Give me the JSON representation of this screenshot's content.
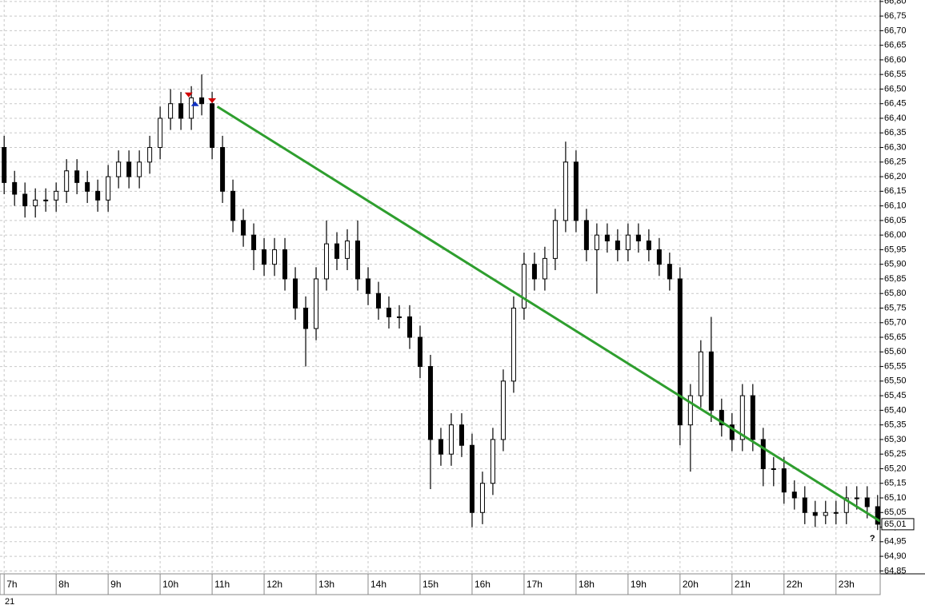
{
  "chart_data": {
    "type": "candlestick",
    "x": [
      7,
      7.2,
      7.4,
      7.6,
      7.8,
      8,
      8.2,
      8.4,
      8.6,
      8.8,
      9,
      9.2,
      9.4,
      9.6,
      9.8,
      10,
      10.2,
      10.4,
      10.6,
      10.8,
      11,
      11.2,
      11.4,
      11.6,
      11.8,
      12,
      12.2,
      12.4,
      12.6,
      12.8,
      13,
      13.2,
      13.4,
      13.6,
      13.8,
      14,
      14.2,
      14.4,
      14.6,
      14.8,
      15,
      15.2,
      15.4,
      15.6,
      15.8,
      16,
      16.2,
      16.4,
      16.6,
      16.8,
      17,
      17.2,
      17.4,
      17.6,
      17.8,
      18,
      18.2,
      18.4,
      18.6,
      18.8,
      19,
      19.2,
      19.4,
      19.6,
      19.8,
      20,
      20.2,
      20.4,
      20.6,
      20.8,
      21,
      21.2,
      21.4,
      21.6,
      21.8,
      22,
      22.2,
      22.4,
      22.6,
      22.8,
      23,
      23.2,
      23.4,
      23.6,
      23.8
    ],
    "open": [
      66.3,
      66.18,
      66.14,
      66.1,
      66.12,
      66.12,
      66.15,
      66.22,
      66.18,
      66.15,
      66.12,
      66.2,
      66.25,
      66.2,
      66.25,
      66.3,
      66.4,
      66.45,
      66.4,
      66.47,
      66.45,
      66.3,
      66.15,
      66.05,
      66.0,
      65.95,
      65.9,
      65.95,
      65.85,
      65.75,
      65.68,
      65.85,
      65.97,
      65.92,
      65.98,
      65.85,
      65.8,
      65.75,
      65.72,
      65.72,
      65.65,
      65.55,
      65.3,
      65.25,
      65.35,
      65.28,
      65.05,
      65.15,
      65.3,
      65.5,
      65.75,
      65.9,
      65.85,
      65.92,
      66.05,
      66.25,
      66.05,
      65.95,
      66.0,
      65.98,
      65.95,
      66.0,
      65.98,
      65.95,
      65.9,
      65.85,
      65.35,
      65.45,
      65.6,
      65.4,
      65.35,
      65.3,
      65.45,
      65.3,
      65.2,
      65.2,
      65.12,
      65.1,
      65.05,
      65.04,
      65.05,
      65.05,
      65.1,
      65.1,
      65.07
    ],
    "high": [
      66.34,
      66.22,
      66.18,
      66.16,
      66.16,
      66.18,
      66.26,
      66.26,
      66.22,
      66.19,
      66.24,
      66.29,
      66.29,
      66.29,
      66.34,
      66.44,
      66.5,
      66.49,
      66.51,
      66.55,
      66.49,
      66.34,
      66.19,
      66.09,
      66.04,
      65.99,
      65.99,
      65.99,
      65.89,
      65.79,
      65.89,
      66.05,
      66.01,
      66.02,
      66.05,
      65.89,
      65.84,
      65.79,
      65.76,
      65.76,
      65.69,
      65.59,
      65.34,
      65.39,
      65.39,
      65.32,
      65.19,
      65.34,
      65.54,
      65.79,
      65.94,
      65.94,
      65.96,
      66.09,
      66.32,
      66.29,
      66.09,
      66.04,
      66.04,
      66.02,
      66.04,
      66.04,
      66.02,
      65.99,
      65.94,
      65.89,
      65.49,
      65.64,
      65.72,
      65.44,
      65.39,
      65.49,
      65.49,
      65.34,
      65.24,
      65.24,
      65.16,
      65.14,
      65.09,
      65.09,
      65.09,
      65.14,
      65.14,
      65.14,
      65.11
    ],
    "low": [
      66.14,
      66.1,
      66.06,
      66.06,
      66.08,
      66.08,
      66.11,
      66.14,
      66.11,
      66.08,
      66.08,
      66.16,
      66.16,
      66.16,
      66.21,
      66.26,
      66.36,
      66.36,
      66.36,
      66.41,
      66.26,
      66.11,
      66.01,
      65.96,
      65.88,
      65.86,
      65.86,
      65.81,
      65.71,
      65.55,
      65.64,
      65.81,
      65.88,
      65.88,
      65.81,
      65.76,
      65.71,
      65.68,
      65.68,
      65.61,
      65.51,
      65.13,
      65.21,
      65.21,
      65.24,
      65.0,
      65.01,
      65.11,
      65.26,
      65.46,
      65.71,
      65.81,
      65.81,
      65.88,
      66.01,
      66.01,
      65.91,
      65.8,
      65.94,
      65.91,
      65.91,
      65.94,
      65.91,
      65.86,
      65.81,
      65.28,
      65.19,
      65.41,
      65.36,
      65.31,
      65.26,
      65.26,
      65.26,
      65.14,
      65.14,
      65.08,
      65.06,
      65.01,
      65.0,
      65.01,
      65.01,
      65.01,
      65.06,
      65.03,
      64.99
    ],
    "close": [
      66.18,
      66.14,
      66.1,
      66.12,
      66.12,
      66.15,
      66.22,
      66.18,
      66.15,
      66.12,
      66.2,
      66.25,
      66.2,
      66.25,
      66.3,
      66.4,
      66.45,
      66.4,
      66.47,
      66.45,
      66.3,
      66.15,
      66.05,
      66.0,
      65.95,
      65.9,
      65.95,
      65.85,
      65.75,
      65.68,
      65.85,
      65.97,
      65.92,
      65.98,
      65.85,
      65.8,
      65.75,
      65.72,
      65.72,
      65.65,
      65.55,
      65.3,
      65.25,
      65.35,
      65.28,
      65.05,
      65.15,
      65.3,
      65.5,
      65.75,
      65.9,
      65.85,
      65.92,
      66.05,
      66.25,
      66.05,
      65.95,
      66.0,
      65.98,
      65.95,
      66.0,
      65.98,
      65.95,
      65.9,
      65.85,
      65.35,
      65.45,
      65.6,
      65.4,
      65.35,
      65.3,
      65.45,
      65.3,
      65.2,
      65.2,
      65.12,
      65.1,
      65.05,
      65.04,
      65.05,
      65.05,
      65.1,
      65.1,
      65.07,
      65.01
    ],
    "color": "#000000",
    "xlim": [
      6.92,
      23.85
    ],
    "ylim": [
      64.84,
      66.805
    ],
    "xticks": [
      {
        "value": 7,
        "label": "7h"
      },
      {
        "value": 8,
        "label": "8h"
      },
      {
        "value": 9,
        "label": "9h"
      },
      {
        "value": 10,
        "label": "10h"
      },
      {
        "value": 11,
        "label": "11h"
      },
      {
        "value": 12,
        "label": "12h"
      },
      {
        "value": 13,
        "label": "13h"
      },
      {
        "value": 14,
        "label": "14h"
      },
      {
        "value": 15,
        "label": "15h"
      },
      {
        "value": 16,
        "label": "16h"
      },
      {
        "value": 17,
        "label": "17h"
      },
      {
        "value": 18,
        "label": "18h"
      },
      {
        "value": 19,
        "label": "19h"
      },
      {
        "value": 20,
        "label": "20h"
      },
      {
        "value": 21,
        "label": "21h"
      },
      {
        "value": 22,
        "label": "22h"
      },
      {
        "value": 23,
        "label": "23h"
      }
    ],
    "yticks": [
      {
        "value": 64.85,
        "label": "64,85"
      },
      {
        "value": 64.9,
        "label": "64,90"
      },
      {
        "value": 64.95,
        "label": "64,95"
      },
      {
        "value": 65.0,
        "label": "65,00"
      },
      {
        "value": 65.05,
        "label": "65,05"
      },
      {
        "value": 65.1,
        "label": "65,10"
      },
      {
        "value": 65.15,
        "label": "65,15"
      },
      {
        "value": 65.2,
        "label": "65,20"
      },
      {
        "value": 65.25,
        "label": "65,25"
      },
      {
        "value": 65.3,
        "label": "65,30"
      },
      {
        "value": 65.35,
        "label": "65,35"
      },
      {
        "value": 65.4,
        "label": "65,40"
      },
      {
        "value": 65.45,
        "label": "65,45"
      },
      {
        "value": 65.5,
        "label": "65,50"
      },
      {
        "value": 65.55,
        "label": "65,55"
      },
      {
        "value": 65.6,
        "label": "65,60"
      },
      {
        "value": 65.65,
        "label": "65,65"
      },
      {
        "value": 65.7,
        "label": "65,70"
      },
      {
        "value": 65.75,
        "label": "65,75"
      },
      {
        "value": 65.8,
        "label": "65,80"
      },
      {
        "value": 65.85,
        "label": "65,85"
      },
      {
        "value": 65.9,
        "label": "65,90"
      },
      {
        "value": 65.95,
        "label": "65,95"
      },
      {
        "value": 66.0,
        "label": "66,00"
      },
      {
        "value": 66.05,
        "label": "66,05"
      },
      {
        "value": 66.1,
        "label": "66,10"
      },
      {
        "value": 66.15,
        "label": "66,15"
      },
      {
        "value": 66.2,
        "label": "66,20"
      },
      {
        "value": 66.25,
        "label": "66,25"
      },
      {
        "value": 66.3,
        "label": "66,30"
      },
      {
        "value": 66.35,
        "label": "66,35"
      },
      {
        "value": 66.4,
        "label": "66,40"
      },
      {
        "value": 66.45,
        "label": "66,45"
      },
      {
        "value": 66.5,
        "label": "66,50"
      },
      {
        "value": 66.55,
        "label": "66,55"
      },
      {
        "value": 66.6,
        "label": "66,60"
      },
      {
        "value": 66.65,
        "label": "66,65"
      },
      {
        "value": 66.7,
        "label": "66,70"
      },
      {
        "value": 66.75,
        "label": "66,75"
      },
      {
        "value": 66.8,
        "label": "66,80"
      }
    ],
    "grid": true,
    "last_price": {
      "value": 65.01,
      "label": "65,01"
    },
    "date_label": "21",
    "trendline": {
      "x": [
        11.1,
        23.85
      ],
      "y": [
        66.44,
        65.02
      ],
      "color": "#2e9e2e"
    },
    "signals": [
      {
        "x": 10.55,
        "y": 66.48,
        "direction": "down",
        "color": "#d00000"
      },
      {
        "x": 10.67,
        "y": 66.45,
        "direction": "up",
        "color": "#1030c0"
      },
      {
        "x": 11.0,
        "y": 66.46,
        "direction": "down",
        "color": "#d00000"
      }
    ],
    "annotation": {
      "x": 23.7,
      "y": 64.96,
      "text": "?"
    }
  }
}
